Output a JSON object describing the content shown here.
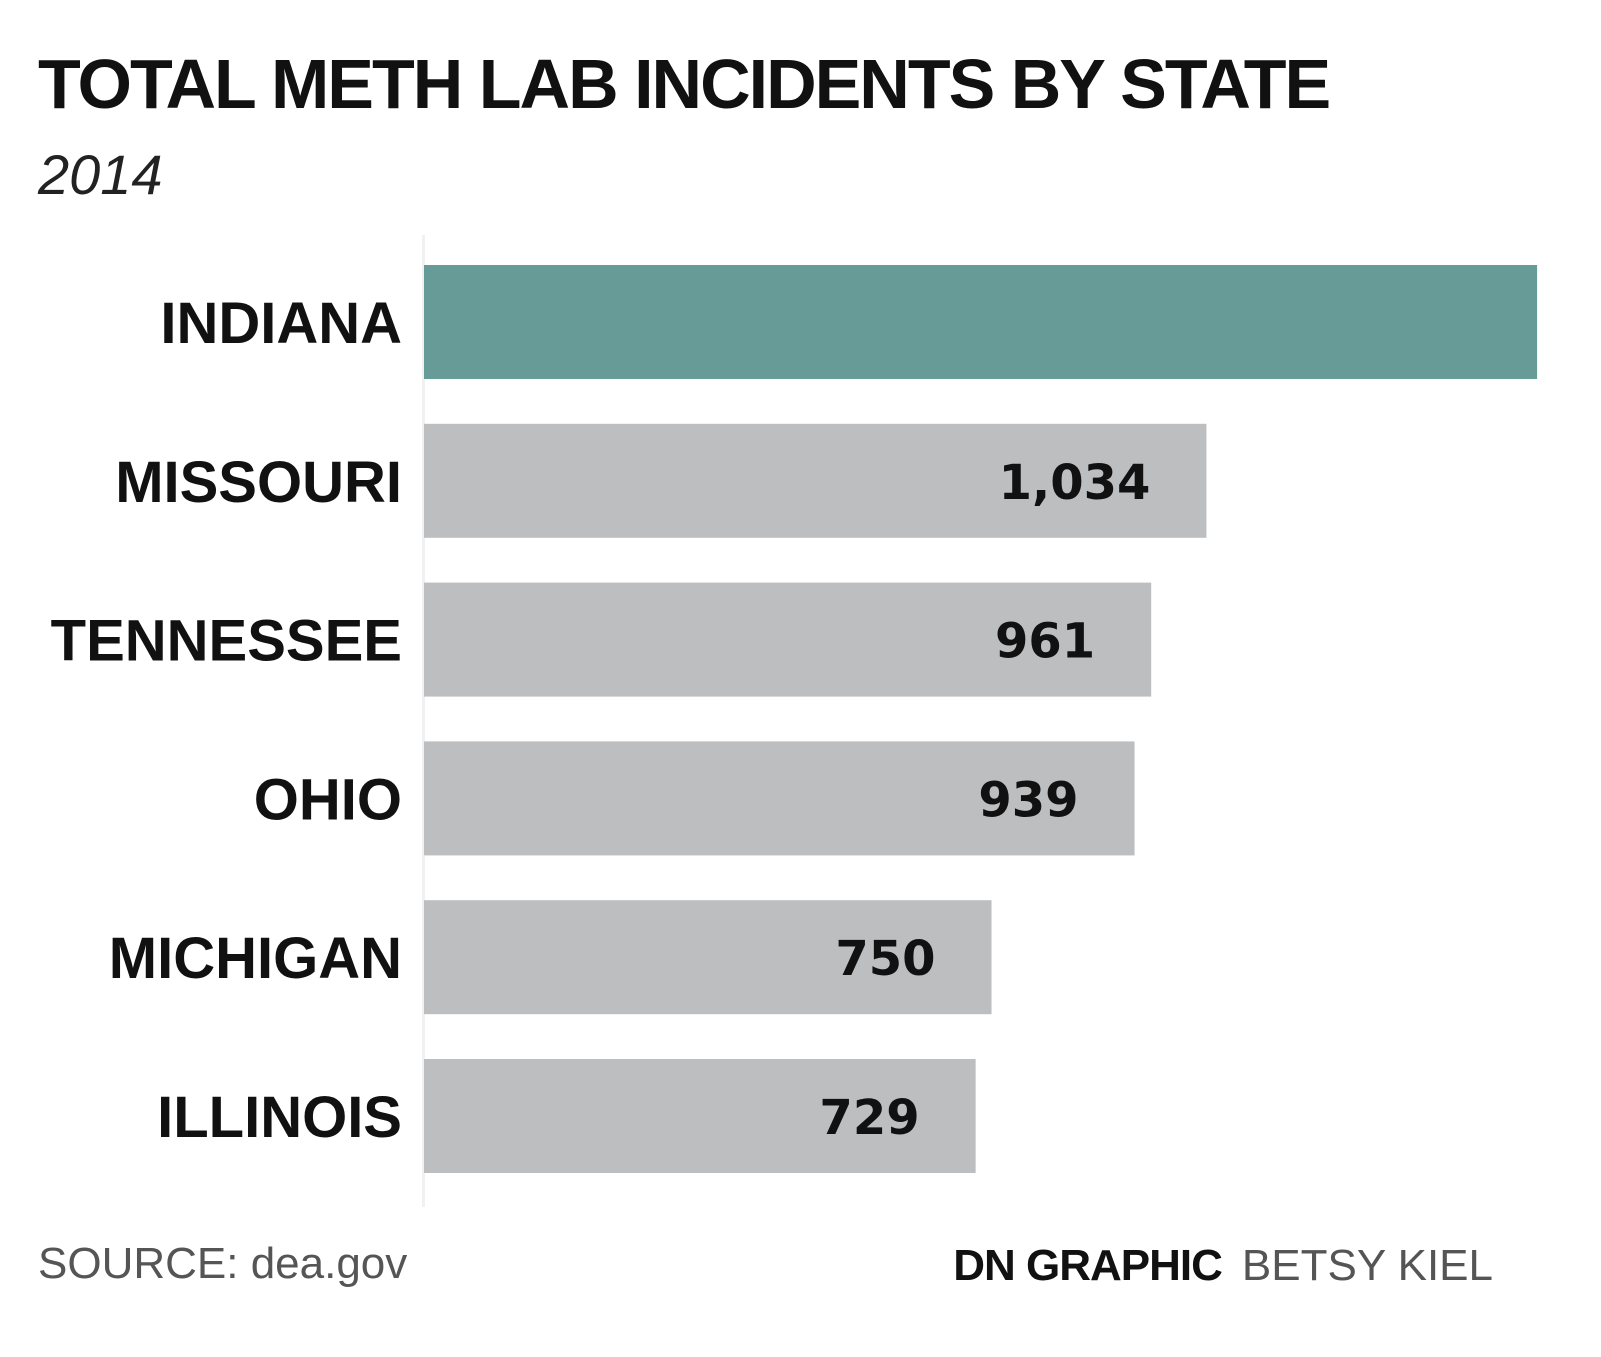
{
  "chart_data": {
    "type": "bar",
    "orientation": "horizontal",
    "title": "TOTAL METH LAB INCIDENTS BY STATE",
    "subtitle": "2014",
    "categories": [
      "INDIANA",
      "MISSOURI",
      "TENNESSEE",
      "OHIO",
      "MICHIGAN",
      "ILLINOIS"
    ],
    "values": [
      1471,
      1034,
      961,
      939,
      750,
      729
    ],
    "value_labels": [
      "",
      "1,034",
      "961",
      "939",
      "750",
      "729"
    ],
    "highlight_color": "#679b98",
    "bar_color": "#bdbec0",
    "label_color": "#111111",
    "grid": false,
    "legend": "none"
  },
  "footer": {
    "source": "SOURCE: dea.gov",
    "credit_org": "DN GRAPHIC",
    "credit_author": "BETSY KIEL"
  }
}
